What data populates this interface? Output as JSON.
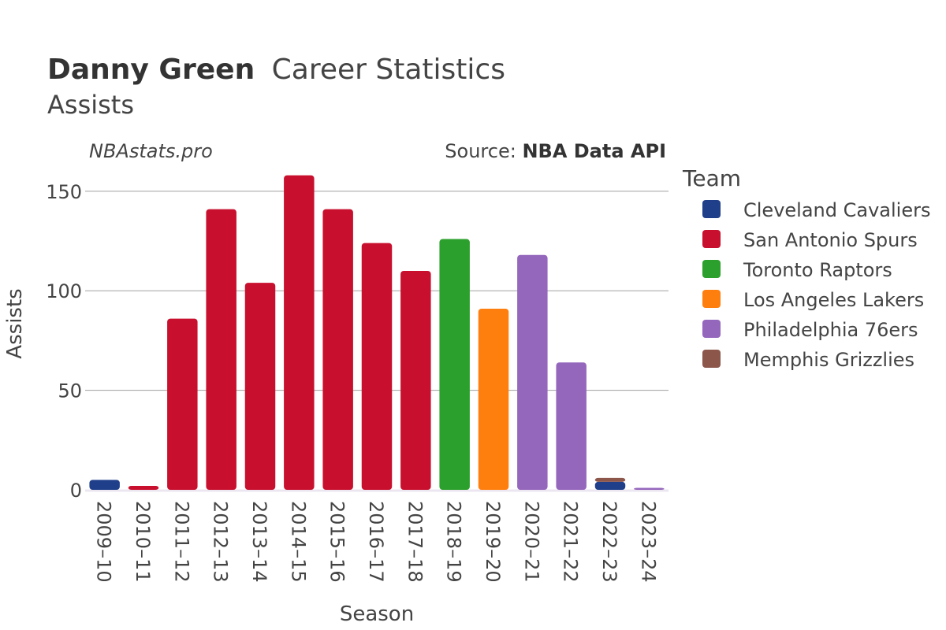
{
  "title": {
    "bold": "Danny Green",
    "rest": "Career Statistics",
    "subtitle": "Assists"
  },
  "watermark": "NBAstats.pro",
  "source": {
    "prefix": "Source: ",
    "name": "NBA Data API"
  },
  "legend": {
    "title": "Team",
    "items": [
      {
        "label": "Cleveland Cavaliers",
        "color": "#1f3f8a"
      },
      {
        "label": "San Antonio Spurs",
        "color": "#c8102e"
      },
      {
        "label": "Toronto Raptors",
        "color": "#2ca02c"
      },
      {
        "label": "Los Angeles Lakers",
        "color": "#ff7f0e"
      },
      {
        "label": "Philadelphia 76ers",
        "color": "#9467bd"
      },
      {
        "label": "Memphis Grizzlies",
        "color": "#8c564b"
      }
    ]
  },
  "chart_data": {
    "type": "bar",
    "stacked": true,
    "xlabel": "Season",
    "ylabel": "Assists",
    "ylim": [
      0,
      163
    ],
    "yticks": [
      0,
      50,
      100,
      150
    ],
    "categories": [
      "2009–10",
      "2010–11",
      "2011–12",
      "2012–13",
      "2013–14",
      "2014–15",
      "2015–16",
      "2016–17",
      "2017–18",
      "2018–19",
      "2019–20",
      "2020–21",
      "2021–22",
      "2022–23",
      "2023–24"
    ],
    "series": [
      {
        "name": "Cleveland Cavaliers",
        "color": "#1f3f8a",
        "values": [
          5,
          0,
          0,
          0,
          0,
          0,
          0,
          0,
          0,
          0,
          0,
          0,
          0,
          4,
          0
        ]
      },
      {
        "name": "San Antonio Spurs",
        "color": "#c8102e",
        "values": [
          0,
          2,
          86,
          141,
          104,
          158,
          141,
          124,
          110,
          0,
          0,
          0,
          0,
          0,
          0
        ]
      },
      {
        "name": "Toronto Raptors",
        "color": "#2ca02c",
        "values": [
          0,
          0,
          0,
          0,
          0,
          0,
          0,
          0,
          0,
          126,
          0,
          0,
          0,
          0,
          0
        ]
      },
      {
        "name": "Los Angeles Lakers",
        "color": "#ff7f0e",
        "values": [
          0,
          0,
          0,
          0,
          0,
          0,
          0,
          0,
          0,
          0,
          91,
          0,
          0,
          0,
          0
        ]
      },
      {
        "name": "Philadelphia 76ers",
        "color": "#9467bd",
        "values": [
          0,
          0,
          0,
          0,
          0,
          0,
          0,
          0,
          0,
          0,
          0,
          118,
          64,
          0,
          1
        ]
      },
      {
        "name": "Memphis Grizzlies",
        "color": "#8c564b",
        "values": [
          0,
          0,
          0,
          0,
          0,
          0,
          0,
          0,
          0,
          0,
          0,
          0,
          0,
          2,
          0
        ]
      }
    ]
  }
}
